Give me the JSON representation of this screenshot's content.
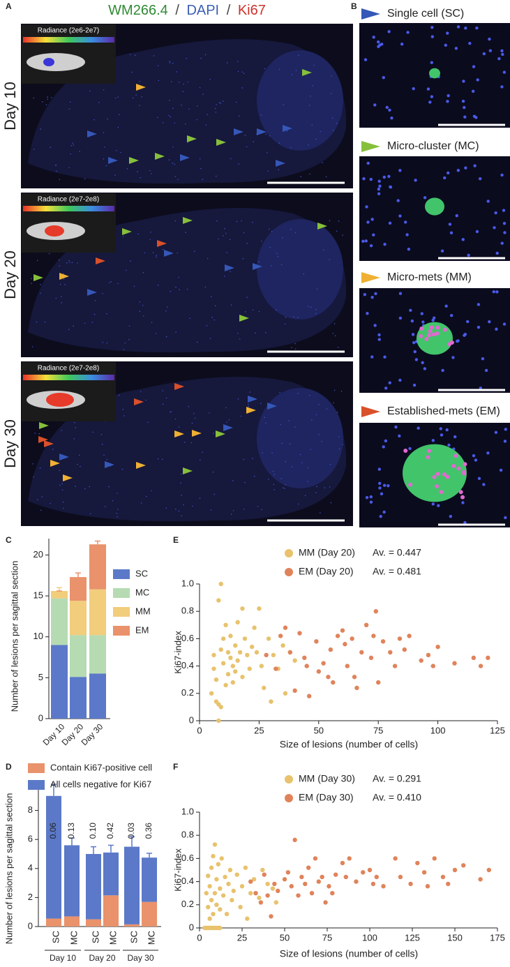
{
  "panel_a": {
    "label": "A",
    "title_parts": [
      "WM266.4",
      "/",
      "DAPI",
      "/",
      "Ki67"
    ],
    "rows": [
      {
        "day": "Day 10",
        "radiance": "Radiance (2e6-2e7)"
      },
      {
        "day": "Day 20",
        "radiance": "Radiance (2e7-2e8)"
      },
      {
        "day": "Day 30",
        "radiance": "Radiance (2e7-2e8)"
      }
    ]
  },
  "panel_b": {
    "label": "B",
    "items": [
      {
        "label": "Single cell (SC)",
        "color": "#3557b8"
      },
      {
        "label": "Micro-cluster (MC)",
        "color": "#86c03b"
      },
      {
        "label": "Micro-mets (MM)",
        "color": "#efb033"
      },
      {
        "label": "Established-mets (EM)",
        "color": "#d9502a"
      }
    ]
  },
  "chart_data": [
    {
      "type": "stacked_bar",
      "panel_label": "C",
      "y_label": "Number of lesions per sagittal section",
      "categories": [
        "Day 10",
        "Day 20",
        "Day 30"
      ],
      "series": [
        {
          "name": "SC",
          "color": "#5b79c8",
          "values": [
            9.0,
            5.1,
            5.5
          ],
          "errors": [
            0.8,
            0.6,
            0.7
          ]
        },
        {
          "name": "MC",
          "color": "#b6dbb2",
          "values": [
            5.7,
            5.1,
            4.7
          ],
          "errors": [
            0.3,
            0.4,
            0.4
          ]
        },
        {
          "name": "MM",
          "color": "#f1cd7c",
          "values": [
            0.9,
            4.2,
            5.6
          ],
          "errors": [
            0.4,
            0.5,
            0.5
          ]
        },
        {
          "name": "EM",
          "color": "#e9926b",
          "values": [
            0,
            2.9,
            5.5
          ],
          "errors": [
            0,
            0.5,
            0.4
          ]
        }
      ],
      "ylim": [
        0,
        22
      ],
      "yticks": [
        0,
        5,
        10,
        15,
        20
      ]
    },
    {
      "type": "stacked_bar",
      "panel_label": "D",
      "y_label": "Number of lesions per sagittal section",
      "categories": [
        "SC",
        "MC",
        "SC",
        "MC",
        "SC",
        "MC"
      ],
      "groups": [
        "Day 10",
        "Day 20",
        "Day 30"
      ],
      "series": [
        {
          "name": "Contain Ki67-positive cell",
          "color": "#e9926b",
          "values": [
            0.55,
            0.7,
            0.5,
            2.15,
            0.15,
            1.7
          ],
          "errors": [
            0.1,
            0.15,
            0.1,
            0.2,
            0.05,
            0.25
          ]
        },
        {
          "name": "All cells negative for Ki67",
          "color": "#5b79c8",
          "values": [
            8.45,
            4.9,
            4.5,
            2.95,
            5.35,
            3.05
          ],
          "errors": [
            0.8,
            0.5,
            0.5,
            0.5,
            0.7,
            0.3
          ]
        }
      ],
      "ratio_labels": [
        "0.06",
        "0.13",
        "0.10",
        "0.42",
        "0.03",
        "0.36"
      ],
      "ylim": [
        0,
        10
      ],
      "yticks": [
        0,
        2,
        4,
        6,
        8
      ]
    },
    {
      "type": "scatter",
      "panel_label": "E",
      "x_label": "Size of lesions (number of cells)",
      "y_label": "Ki67-index",
      "series": [
        {
          "name": "MM (Day 20)",
          "average_label": "Av. = 0.447",
          "color": "#e8c26d",
          "x": [
            5,
            6,
            6,
            7,
            7,
            8,
            8,
            9,
            9,
            8,
            9,
            10,
            10,
            11,
            11,
            12,
            12,
            13,
            13,
            14,
            14,
            15,
            15,
            16,
            16,
            17,
            18,
            18,
            19,
            20,
            21,
            22,
            23,
            24,
            25,
            26,
            27,
            29,
            30,
            31,
            33,
            35,
            36,
            38,
            40
          ],
          "values": [
            0.2,
            0.48,
            0.38,
            0.3,
            0.14,
            0.12,
            0,
            0.1,
            0.52,
            0.88,
            1,
            0.6,
            0.42,
            0.26,
            0.7,
            0.34,
            0.5,
            0.46,
            0.62,
            0.4,
            0.28,
            0.55,
            0.36,
            0.72,
            0.44,
            0.5,
            0.82,
            0.32,
            0.6,
            0.48,
            0.38,
            0.54,
            0.68,
            0.5,
            0.82,
            0.4,
            0.24,
            0.6,
            0.14,
            0.48,
            0.38,
            0.55,
            0.2,
            0.5,
            0.44
          ]
        },
        {
          "name": "EM (Day 20)",
          "average_label": "Av. = 0.481",
          "color": "#e0835b",
          "x": [
            28,
            32,
            34,
            36,
            38,
            40,
            42,
            44,
            45,
            46,
            49,
            50,
            52,
            54,
            55,
            56,
            58,
            60,
            61,
            62,
            64,
            65,
            66,
            68,
            70,
            72,
            73,
            74,
            75,
            77,
            80,
            82,
            84,
            86,
            88,
            93,
            96,
            98,
            100,
            107,
            115,
            118,
            121
          ],
          "values": [
            0.48,
            0.38,
            0.62,
            0.68,
            0.5,
            0.22,
            0.64,
            0.46,
            0.4,
            0.18,
            0.58,
            0.36,
            0.42,
            0.32,
            0.52,
            0.28,
            0.62,
            0.66,
            0.56,
            0.4,
            0.6,
            0.32,
            0.24,
            0.5,
            0.7,
            0.46,
            0.62,
            0.8,
            0.28,
            0.58,
            0.5,
            0.4,
            0.6,
            0.52,
            0.62,
            0.44,
            0.48,
            0.4,
            0.54,
            0.42,
            0.46,
            0.4,
            0.46
          ]
        }
      ],
      "xlim": [
        0,
        125
      ],
      "xticks": [
        0,
        25,
        50,
        75,
        100,
        125
      ],
      "ylim": [
        0,
        1
      ],
      "yticks": [
        0,
        0.2,
        0.4,
        0.6,
        0.8,
        {
          "value": 1,
          "label": "1.0"
        }
      ]
    },
    {
      "type": "scatter",
      "panel_label": "F",
      "x_label": "Size of lesions (number of cells)",
      "y_label": "Ki67-index",
      "series": [
        {
          "name": "MM (Day 30)",
          "average_label": "Av. = 0.291",
          "color": "#e8c26d",
          "x": [
            3,
            4,
            5,
            6,
            7,
            8,
            9,
            10,
            11,
            12,
            4,
            5,
            5,
            6,
            6,
            7,
            7,
            8,
            8,
            9,
            9,
            10,
            10,
            11,
            12,
            12,
            13,
            14,
            15,
            16,
            17,
            18,
            19,
            20,
            22,
            24,
            25,
            27,
            28,
            30,
            32,
            35,
            37,
            40,
            43,
            45
          ],
          "values": [
            0,
            0,
            0,
            0,
            0,
            0,
            0,
            0,
            0,
            0,
            0.3,
            0.18,
            0.45,
            0.08,
            0.36,
            0.24,
            0.52,
            0.12,
            0.62,
            0.3,
            0.72,
            0.2,
            0.42,
            0.55,
            0.16,
            0.34,
            0.6,
            0.28,
            0.44,
            0.12,
            0.38,
            0.5,
            0.24,
            0.32,
            0.46,
            0.18,
            0.36,
            0.52,
            0.08,
            0.3,
            0.42,
            0.26,
            0.5,
            0.38,
            0.34,
            0.22
          ]
        },
        {
          "name": "EM (Day 30)",
          "average_label": "Av. = 0.410",
          "color": "#e0835b",
          "x": [
            30,
            33,
            36,
            38,
            40,
            42,
            44,
            46,
            50,
            52,
            54,
            56,
            58,
            60,
            62,
            64,
            66,
            68,
            70,
            72,
            74,
            76,
            78,
            80,
            84,
            86,
            88,
            92,
            96,
            100,
            102,
            104,
            108,
            115,
            118,
            124,
            128,
            132,
            134,
            138,
            143,
            146,
            150,
            155,
            165,
            170
          ],
          "values": [
            0.4,
            0.3,
            0.22,
            0.46,
            0.28,
            0.1,
            0.38,
            0.32,
            0.42,
            0.48,
            0.36,
            0.76,
            0.28,
            0.44,
            0.38,
            0.52,
            0.3,
            0.6,
            0.4,
            0.44,
            0.22,
            0.36,
            0.3,
            0.46,
            0.56,
            0.44,
            0.6,
            0.4,
            0.48,
            0.5,
            0.38,
            0.44,
            0.36,
            0.6,
            0.44,
            0.38,
            0.56,
            0.48,
            0.36,
            0.6,
            0.44,
            0.38,
            0.5,
            0.54,
            0.42,
            0.5
          ]
        }
      ],
      "xlim": [
        0,
        175
      ],
      "xticks": [
        0,
        25,
        50,
        75,
        100,
        125,
        150,
        175
      ],
      "ylim": [
        0,
        1
      ],
      "yticks": [
        0,
        0.2,
        0.4,
        0.6,
        0.8,
        {
          "value": 1,
          "label": "1.0"
        }
      ]
    }
  ]
}
